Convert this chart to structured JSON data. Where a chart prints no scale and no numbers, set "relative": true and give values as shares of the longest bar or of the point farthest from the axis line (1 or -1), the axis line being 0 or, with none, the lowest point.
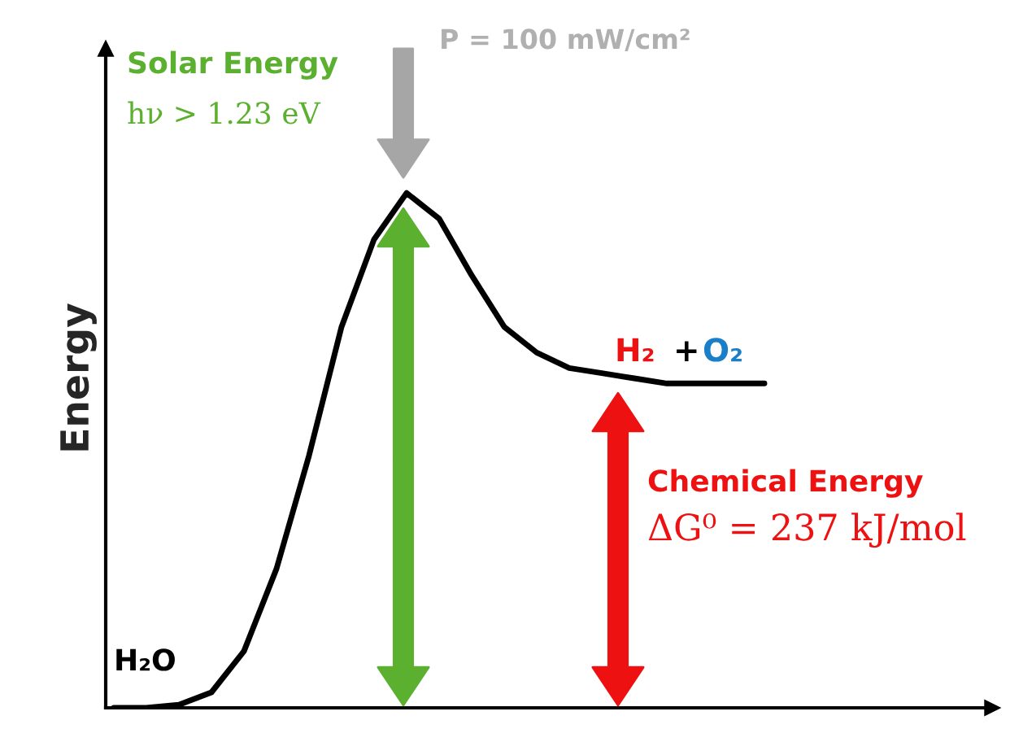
{
  "chart_data": {
    "type": "line",
    "relative": true,
    "ylabel": "Energy",
    "grid": false,
    "legend": false,
    "marker": "none",
    "line_style": "solid",
    "categories": [
      null,
      null,
      null,
      null,
      null,
      null,
      null,
      null,
      null,
      null,
      null,
      null,
      null,
      null,
      null,
      null,
      null,
      null,
      null,
      null,
      null
    ],
    "series": [
      {
        "color": "#000000",
        "values": [
          0,
          0,
          0.006,
          0.03,
          0.11,
          0.27,
          0.49,
          0.74,
          0.91,
          1.0,
          0.95,
          0.84,
          0.74,
          0.69,
          0.66,
          0.65,
          0.64,
          0.63,
          0.63,
          0.63,
          0.63
        ]
      }
    ],
    "annotations": [
      "P = 100 mW/cm²",
      "Solar Energy",
      "hν > 1.23 eV",
      "H₂O",
      "H₂",
      "+",
      "O₂",
      "Chemical Energy",
      "ΔG⁰ = 237 kJ/mol"
    ]
  }
}
